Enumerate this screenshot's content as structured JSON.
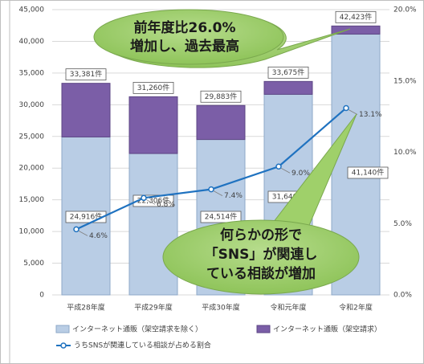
{
  "chart_data": {
    "type": "stacked_bar_line",
    "categories": [
      "平成28年度",
      "平成29年度",
      "平成30年度",
      "令和元年度",
      "令和2年度"
    ],
    "series": [
      {
        "name": "インターネット通販（架空請求を除く）",
        "color": "#b9cde5",
        "values": [
          24916,
          22306,
          24514,
          31640,
          41140
        ],
        "value_labels": [
          "24,916件",
          "22,306件",
          "24,514件",
          "31,640件",
          "41,140件"
        ]
      },
      {
        "name": "インターネット通販（架空請求）",
        "color": "#7b5ea7",
        "values": [
          8465,
          8954,
          5369,
          2035,
          1283
        ]
      },
      {
        "name": "うちSNSが関連している相談が占める割合",
        "color": "#1f72c0",
        "axis": "y2",
        "values": [
          4.6,
          6.8,
          7.4,
          9.0,
          13.1
        ],
        "value_labels": [
          "4.6%",
          "6.8%",
          "7.4%",
          "9.0%",
          "13.1%"
        ]
      }
    ],
    "total_labels": [
      "33,381件",
      "31,260件",
      "29,883件",
      "33,675件",
      "42,423件"
    ],
    "ylim": [
      0,
      45000
    ],
    "yticks": [
      0,
      {
        "value": 5000,
        "label": "5,000"
      },
      {
        "value": 10000,
        "label": "10,000"
      },
      {
        "value": 15000,
        "label": "15,000"
      },
      {
        "value": 20000,
        "label": "20,000"
      },
      {
        "value": 25000,
        "label": "25,000"
      },
      {
        "value": 30000,
        "label": "30,000"
      },
      {
        "value": 35000,
        "label": "35,000"
      },
      {
        "value": 40000,
        "label": "40,000"
      },
      {
        "value": 45000,
        "label": "45,000"
      }
    ],
    "y2lim": [
      0,
      20
    ],
    "y2ticks": [
      {
        "value": 0,
        "label": "0.0%"
      },
      {
        "value": 5,
        "label": "5.0%"
      },
      {
        "value": 10,
        "label": "10.0%"
      },
      {
        "value": 15,
        "label": "15.0%"
      },
      {
        "value": 20,
        "label": "20.0%"
      }
    ],
    "grid": true,
    "annotations": [
      "前年度比26.0%",
      "増加し、過去最高",
      "何らかの形で",
      "「SNS」が関連し",
      "ている相談が増加"
    ]
  }
}
